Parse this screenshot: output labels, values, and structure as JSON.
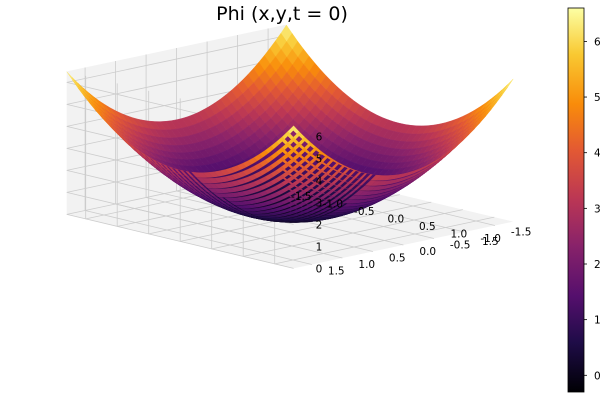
{
  "chart_data": {
    "type": "surface",
    "title": "Phi (x,y,t = 0)",
    "xlabel": "",
    "ylabel": "",
    "zlabel": "",
    "function": "x^2 + y^2",
    "x_range": [
      -1.8,
      1.8
    ],
    "y_range": [
      -1.8,
      1.8
    ],
    "z_range": [
      0,
      6.5
    ],
    "grid_samples": 40,
    "x_ticks": [
      "-1.5",
      "-1.0",
      "-0.5",
      "0.0",
      "0.5",
      "1.0",
      "1.5"
    ],
    "y_ticks": [
      "-1.5",
      "-1.0",
      "-0.5",
      "0.0",
      "0.5",
      "1.0",
      "1.5"
    ],
    "z_ticks": [
      "0",
      "1",
      "2",
      "3",
      "4",
      "5",
      "6"
    ],
    "colorbar": {
      "colormap": "inferno",
      "range": [
        -0.3,
        6.6
      ],
      "ticks": [
        "0",
        "1",
        "2",
        "3",
        "4",
        "5",
        "6"
      ]
    },
    "grid": true,
    "legend": "none",
    "colors": {
      "pane": "#f2f2f2",
      "grid": "#cccccc"
    }
  }
}
